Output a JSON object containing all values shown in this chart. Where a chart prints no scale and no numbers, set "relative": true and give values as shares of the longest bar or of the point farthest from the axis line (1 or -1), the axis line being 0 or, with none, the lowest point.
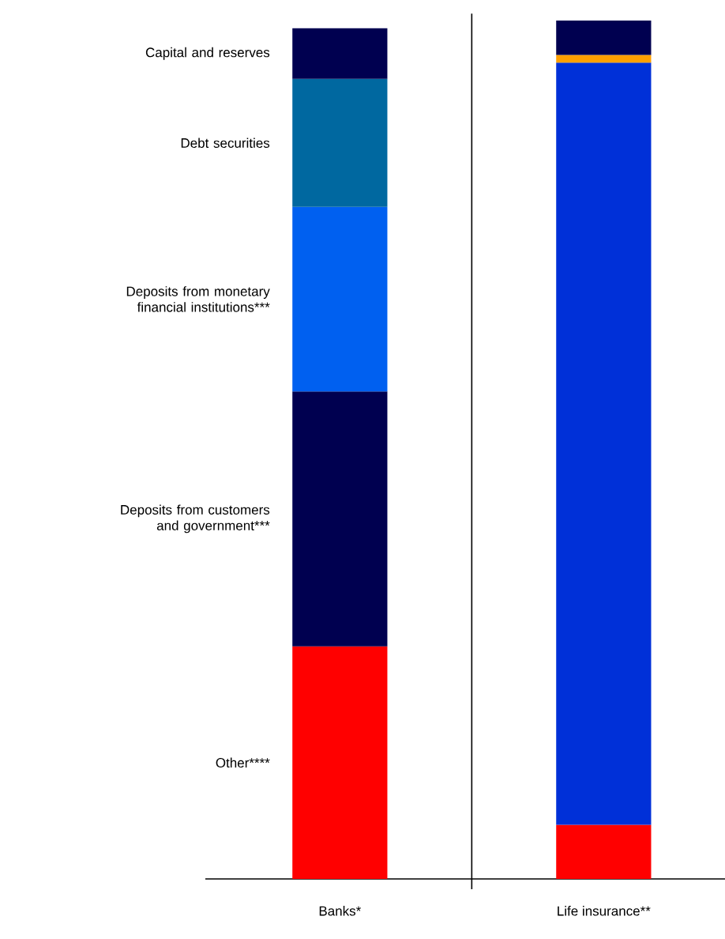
{
  "chart_data": {
    "type": "bar",
    "stacked": true,
    "relative": true,
    "categories": [
      "Banks*",
      "Life insurance**"
    ],
    "series": [
      {
        "name": "Other****",
        "color": "#ff0000",
        "values": [
          0.271,
          0.063
        ]
      },
      {
        "name": "Deposits from customers and government***",
        "color": "#000050",
        "values": [
          0.297,
          null
        ]
      },
      {
        "name": "Deposits from monetary financial institutions***",
        "color": "#0060f0",
        "values": [
          0.215,
          null
        ]
      },
      {
        "color": "#0030d8",
        "values": [
          null,
          0.888
        ]
      },
      {
        "name": "Debt securities",
        "color": "#0068a0",
        "values": [
          0.149,
          null
        ]
      },
      {
        "color": "#ffa000",
        "values": [
          null,
          0.009
        ]
      },
      {
        "name": "Capital and reserves",
        "color": "#000050",
        "values": [
          0.059,
          0.04
        ]
      }
    ]
  }
}
